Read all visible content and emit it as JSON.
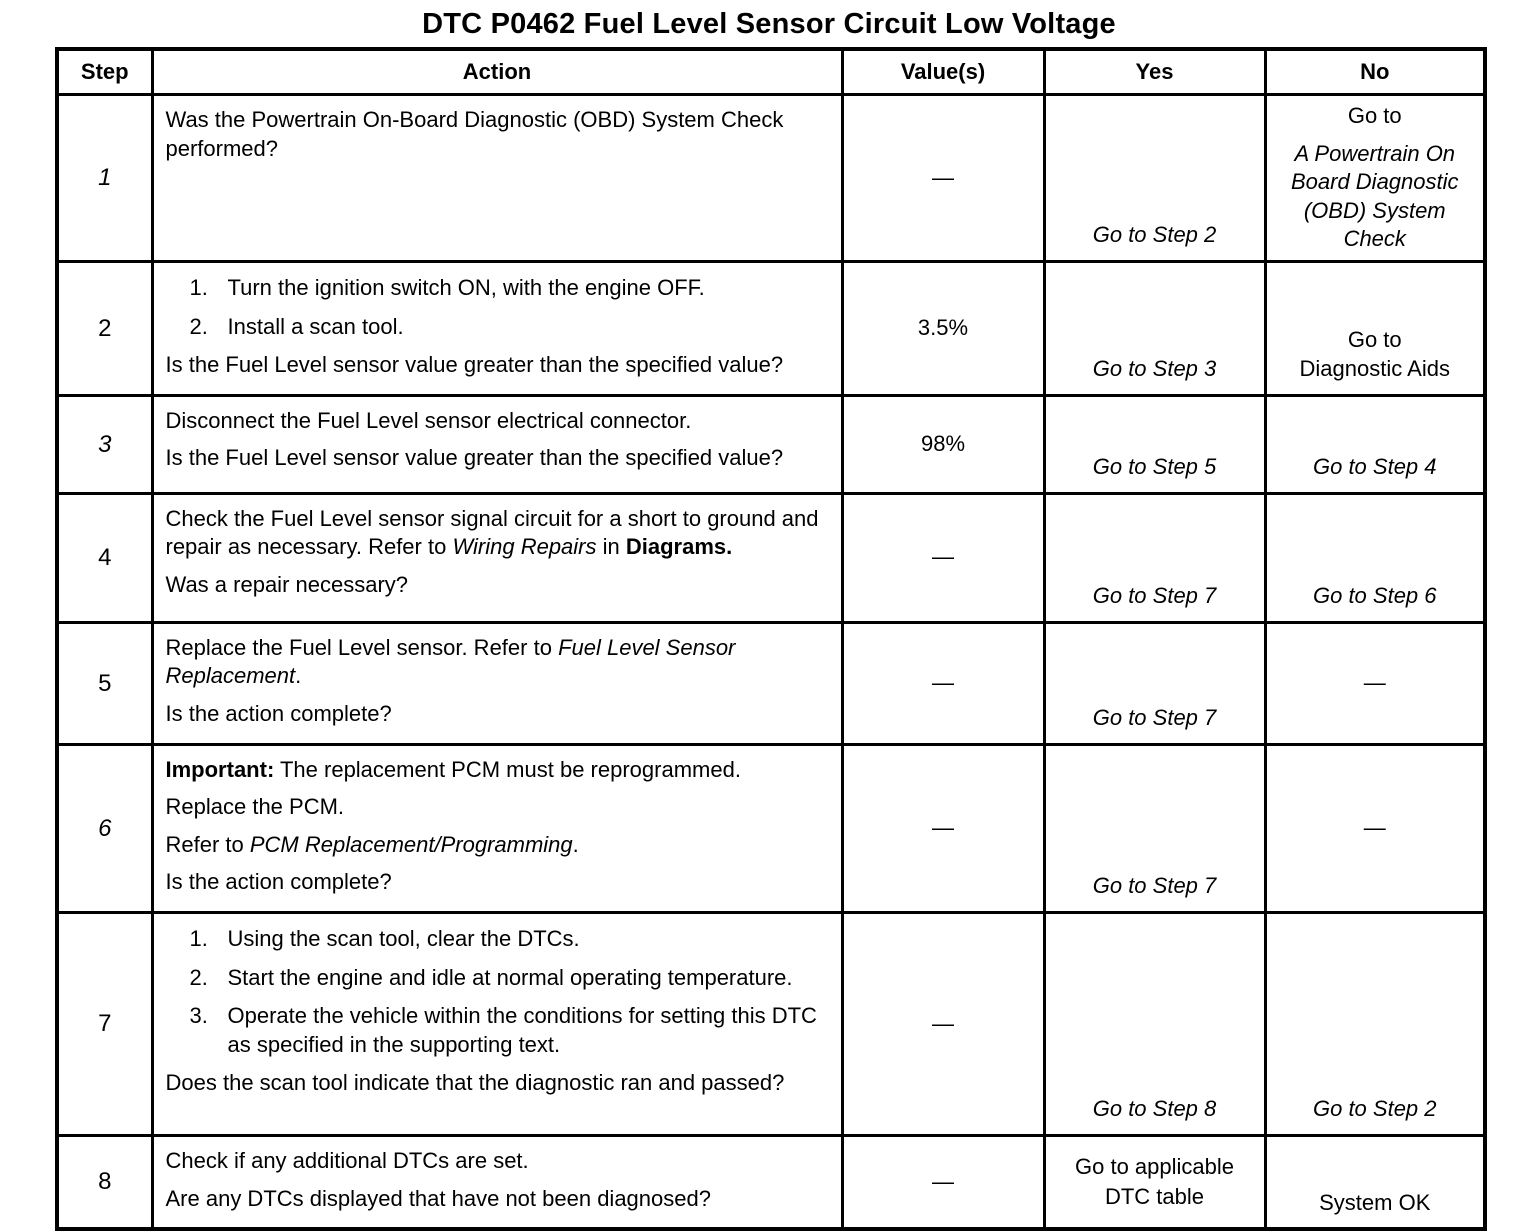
{
  "title": "DTC P0462 Fuel Level Sensor Circuit Low Voltage",
  "table": {
    "columns": [
      "Step",
      "Action",
      "Value(s)",
      "Yes",
      "No"
    ],
    "rows": [
      {
        "step": "1",
        "step_italic": true,
        "action": [
          {
            "type": "para",
            "runs": [
              {
                "t": "Was the Powertrain On-Board Diagnostic (OBD) System Check performed?"
              }
            ]
          }
        ],
        "value": "—",
        "yes": {
          "align": "bottom",
          "lines": [
            {
              "t": "Go to Step 2",
              "i": true
            }
          ]
        },
        "no": {
          "align": "top",
          "lines": [
            {
              "t": "Go to"
            },
            {
              "t": "A Powertrain On Board Diagnostic (OBD) System Check",
              "i": true
            }
          ]
        }
      },
      {
        "step": "2",
        "step_italic": false,
        "action": [
          {
            "type": "item",
            "num": "1.",
            "runs": [
              {
                "t": "Turn the ignition switch ON, with the engine OFF."
              }
            ]
          },
          {
            "type": "item",
            "num": "2.",
            "runs": [
              {
                "t": "Install a scan tool."
              }
            ]
          },
          {
            "type": "para",
            "runs": [
              {
                "t": "Is the Fuel Level sensor value greater than the specified value?"
              }
            ]
          }
        ],
        "value": "3.5%",
        "yes": {
          "align": "bottom",
          "lines": [
            {
              "t": "Go to Step 3",
              "i": true
            }
          ]
        },
        "no": {
          "align": "bottom",
          "lines": [
            {
              "t": "Go to"
            },
            {
              "t": "Diagnostic Aids"
            }
          ]
        }
      },
      {
        "step": "3",
        "step_italic": true,
        "action": [
          {
            "type": "para",
            "runs": [
              {
                "t": "Disconnect the Fuel Level sensor electrical connector."
              }
            ]
          },
          {
            "type": "para",
            "runs": [
              {
                "t": "Is the Fuel Level sensor value greater than the specified value?"
              }
            ]
          }
        ],
        "value": "98%",
        "yes": {
          "align": "bottom",
          "lines": [
            {
              "t": "Go to Step 5",
              "i": true
            }
          ]
        },
        "no": {
          "align": "bottom",
          "lines": [
            {
              "t": "Go to Step 4",
              "i": true
            }
          ]
        }
      },
      {
        "step": "4",
        "step_italic": false,
        "action": [
          {
            "type": "para",
            "runs": [
              {
                "t": "Check the Fuel Level sensor signal circuit for a short to ground and repair as necessary. Refer to "
              },
              {
                "t": "Wiring Repairs",
                "i": true
              },
              {
                "t": " in "
              },
              {
                "t": "Diagrams.",
                "b": true
              }
            ]
          },
          {
            "type": "para",
            "runs": [
              {
                "t": "Was a repair necessary?"
              }
            ]
          }
        ],
        "value": "—",
        "yes": {
          "align": "bottom",
          "lines": [
            {
              "t": "Go to Step 7",
              "i": true
            }
          ]
        },
        "no": {
          "align": "bottom",
          "lines": [
            {
              "t": "Go to Step 6",
              "i": true
            }
          ]
        }
      },
      {
        "step": "5",
        "step_italic": false,
        "action": [
          {
            "type": "para",
            "runs": [
              {
                "t": "Replace the Fuel Level sensor. Refer to "
              },
              {
                "t": "Fuel Level Sensor Replacement",
                "i": true
              },
              {
                "t": "."
              }
            ]
          },
          {
            "type": "para",
            "runs": [
              {
                "t": "Is the action complete?"
              }
            ]
          }
        ],
        "value": "—",
        "yes": {
          "align": "bottom",
          "lines": [
            {
              "t": "Go to Step 7",
              "i": true
            }
          ]
        },
        "no": {
          "align": "center",
          "lines": [
            {
              "t": "—"
            }
          ]
        }
      },
      {
        "step": "6",
        "step_italic": true,
        "action": [
          {
            "type": "para",
            "runs": [
              {
                "t": "Important:",
                "b": true
              },
              {
                "t": " The replacement PCM must be reprogrammed."
              }
            ]
          },
          {
            "type": "para",
            "runs": [
              {
                "t": "Replace the PCM."
              }
            ]
          },
          {
            "type": "para",
            "runs": [
              {
                "t": "Refer to "
              },
              {
                "t": "PCM Replacement/Programming",
                "i": true
              },
              {
                "t": "."
              }
            ]
          },
          {
            "type": "para",
            "runs": [
              {
                "t": "Is the action complete?"
              }
            ]
          }
        ],
        "value": "—",
        "yes": {
          "align": "bottom",
          "lines": [
            {
              "t": "Go to Step 7",
              "i": true
            }
          ]
        },
        "no": {
          "align": "center",
          "lines": [
            {
              "t": "—"
            }
          ]
        }
      },
      {
        "step": "7",
        "step_italic": false,
        "action": [
          {
            "type": "item",
            "num": "1.",
            "runs": [
              {
                "t": "Using the scan tool, clear the DTCs."
              }
            ]
          },
          {
            "type": "item",
            "num": "2.",
            "runs": [
              {
                "t": "Start the engine and idle at normal operating temperature."
              }
            ]
          },
          {
            "type": "item",
            "num": "3.",
            "runs": [
              {
                "t": "Operate the vehicle within the conditions for setting this DTC as specified in the supporting text."
              }
            ]
          },
          {
            "type": "para",
            "runs": [
              {
                "t": "Does the scan tool indicate that the diagnostic ran and passed?"
              }
            ]
          }
        ],
        "value": "—",
        "yes": {
          "align": "bottom",
          "lines": [
            {
              "t": "Go to Step 8",
              "i": true
            }
          ]
        },
        "no": {
          "align": "bottom",
          "lines": [
            {
              "t": "Go to Step 2",
              "i": true
            }
          ]
        }
      },
      {
        "step": "8",
        "step_italic": false,
        "action": [
          {
            "type": "para",
            "runs": [
              {
                "t": "Check if any additional DTCs are set."
              }
            ]
          },
          {
            "type": "para",
            "runs": [
              {
                "t": "Are any DTCs displayed that have not been diagnosed?"
              }
            ]
          }
        ],
        "value": "—",
        "yes": {
          "align": "center",
          "lines": [
            {
              "t": "Go to applicable"
            },
            {
              "t": "DTC table"
            }
          ]
        },
        "no": {
          "align": "bottom",
          "lines": [
            {
              "t": "System OK"
            }
          ]
        }
      }
    ]
  }
}
